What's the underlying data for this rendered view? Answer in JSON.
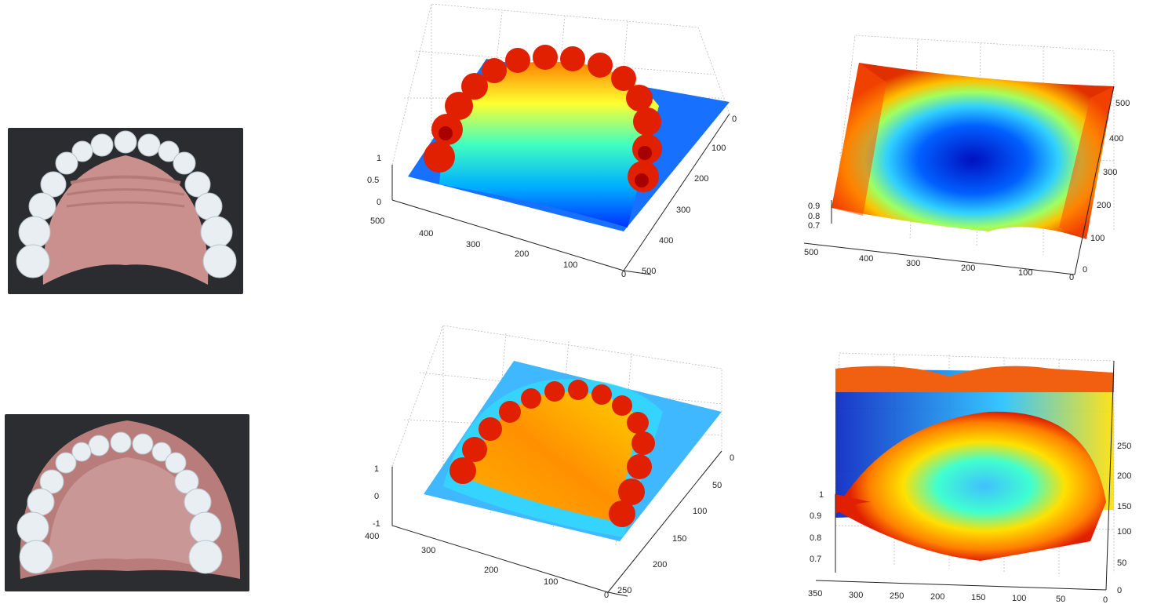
{
  "figure": {
    "row1": {
      "photo": {
        "icon": "dental-cast-photo-upper-arch"
      },
      "plot_a": {
        "z_ticks": [
          "0",
          "0.5",
          "1"
        ],
        "x_ticks": [
          "500",
          "400",
          "300",
          "200",
          "100",
          "0"
        ],
        "y_ticks": [
          "0",
          "100",
          "200",
          "300",
          "400",
          "500"
        ]
      },
      "plot_b": {
        "z_ticks": [
          "0.7",
          "0.8",
          "0.9"
        ],
        "x_ticks": [
          "500",
          "400",
          "300",
          "200",
          "100",
          "0"
        ],
        "y_ticks": [
          "0",
          "100",
          "200",
          "300",
          "400",
          "500"
        ]
      }
    },
    "row2": {
      "photo": {
        "icon": "dental-cast-photo-with-base"
      },
      "plot_a": {
        "z_ticks": [
          "-1",
          "0",
          "1"
        ],
        "x_ticks": [
          "400",
          "300",
          "200",
          "100",
          "0"
        ],
        "y_ticks": [
          "0",
          "50",
          "100",
          "150",
          "200",
          "250"
        ]
      },
      "plot_b": {
        "z_ticks": [
          "0.7",
          "0.8",
          "0.9",
          "1"
        ],
        "x_ticks": [
          "350",
          "300",
          "250",
          "200",
          "150",
          "100",
          "50",
          "0"
        ],
        "y_ticks": [
          "0",
          "50",
          "100",
          "150",
          "200",
          "250"
        ]
      }
    },
    "colors": {
      "colormap": [
        "#00008f",
        "#0040ff",
        "#00c0ff",
        "#40ffbf",
        "#bfff40",
        "#ffc000",
        "#ff4000",
        "#8f0000"
      ]
    }
  }
}
